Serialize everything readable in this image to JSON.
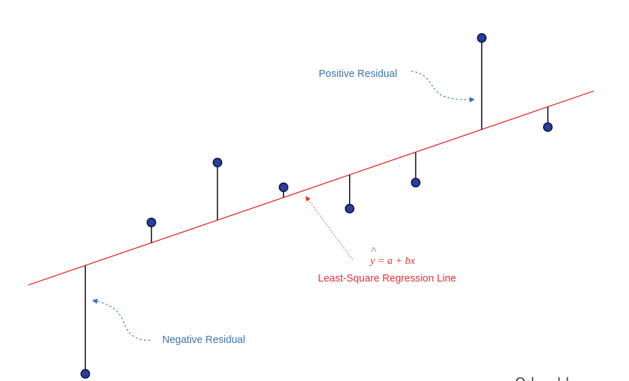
{
  "colors": {
    "regression_line": "#e03131",
    "residual_line": "#111111",
    "point_fill": "#2c3e9c",
    "point_stroke": "#0c1440",
    "label_blue": "#3a74b4",
    "label_red": "#e03131",
    "watermark": "#444444"
  },
  "labels": {
    "positive_residual": "Positive Residual",
    "negative_residual": "Negative Residual",
    "equation": "y = a + bx",
    "equation_hat": "^",
    "regression_line": "Least-Square Regression Line",
    "watermark": "Q:l   ... l l"
  },
  "chart_data": {
    "type": "scatter",
    "regression": {
      "intercept_a": 0,
      "slope_b": 0
    },
    "points": [
      {
        "x": 1,
        "y": -1.6,
        "residual": "negative"
      },
      {
        "x": 2,
        "y": 0.3,
        "residual": "positive"
      },
      {
        "x": 3,
        "y": 0.85,
        "residual": "positive"
      },
      {
        "x": 4,
        "y": 0.15,
        "residual": "positive"
      },
      {
        "x": 5,
        "y": -0.5,
        "residual": "negative"
      },
      {
        "x": 6,
        "y": -0.45,
        "residual": "negative"
      },
      {
        "x": 7,
        "y": 1.35,
        "residual": "positive"
      },
      {
        "x": 8,
        "y": -0.3,
        "residual": "negative"
      }
    ]
  }
}
